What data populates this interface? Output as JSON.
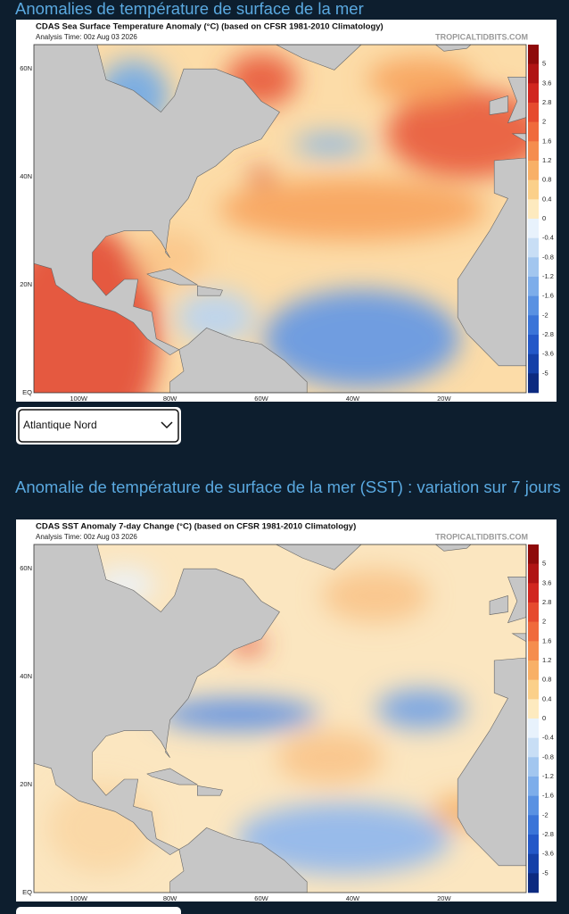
{
  "maps": [
    {
      "heading": "Anomalies de température de surface de la mer",
      "title": "CDAS Sea Surface Temperature Anomaly (°C) (based on CFSR 1981-2010 Climatology)",
      "analysis_time": "Analysis Time: 00z Aug 03 2026",
      "watermark": "TROPICALTIDBITS.COM",
      "dropdown": "Atlantique Nord"
    },
    {
      "heading": "Anomalie de température de surface de la mer (SST) : variation sur 7 jours",
      "title": "CDAS SST Anomaly 7-day Change (°C) (based on CFSR 1981-2010 Climatology)",
      "analysis_time": "Analysis Time: 00z Aug 03 2026",
      "watermark": "TROPICALTIDBITS.COM"
    }
  ],
  "axes": {
    "lat_labels": [
      "60N",
      "40N",
      "20N",
      "EQ"
    ],
    "lon_labels": [
      "100W",
      "80W",
      "60W",
      "40W",
      "20W"
    ],
    "colorbar_labels": [
      "5",
      "3.6",
      "2.8",
      "2",
      "1.6",
      "1.2",
      "0.8",
      "0.4",
      "0",
      "-0.4",
      "-0.8",
      "-1.2",
      "-1.6",
      "-2",
      "-2.8",
      "-3.6",
      "-5"
    ]
  }
}
